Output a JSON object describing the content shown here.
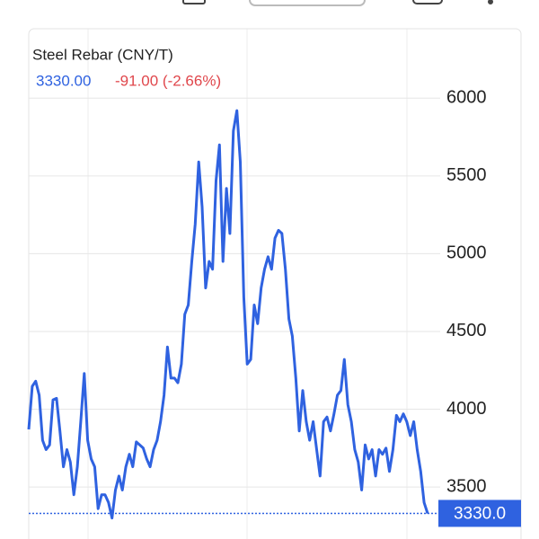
{
  "chart_data": {
    "type": "line",
    "title": "Steel Rebar (CNY/T)",
    "quote": {
      "last": "3330.00",
      "change": "-91.00 (-2.66%)"
    },
    "series": [
      {
        "name": "Steel Rebar",
        "color": "#2f62e0",
        "values": [
          3870,
          4147,
          4180,
          4090,
          3800,
          3740,
          3770,
          4060,
          4070,
          3860,
          3630,
          3740,
          3660,
          3450,
          3630,
          3920,
          4230,
          3800,
          3680,
          3630,
          3360,
          3450,
          3450,
          3400,
          3300,
          3480,
          3570,
          3480,
          3630,
          3710,
          3630,
          3790,
          3770,
          3750,
          3680,
          3630,
          3740,
          3800,
          3920,
          4090,
          4400,
          4200,
          4200,
          4170,
          4290,
          4610,
          4670,
          4950,
          5190,
          5590,
          5300,
          4780,
          4950,
          4900,
          5470,
          5700,
          4950,
          5420,
          5130,
          5790,
          5920,
          5590,
          4720,
          4290,
          4320,
          4670,
          4550,
          4780,
          4900,
          4980,
          4900,
          5100,
          5150,
          5130,
          4900,
          4580,
          4470,
          4200,
          3860,
          4120,
          3920,
          3800,
          3920,
          3740,
          3570,
          3920,
          3950,
          3860,
          3970,
          4090,
          4120,
          4320,
          4030,
          3920,
          3740,
          3660,
          3480,
          3770,
          3680,
          3740,
          3570,
          3740,
          3710,
          3750,
          3600,
          3740,
          3960,
          3920,
          3970,
          3920,
          3830,
          3920,
          3740,
          3600,
          3400,
          3330
        ]
      }
    ],
    "ylim": [
      3200,
      6400
    ],
    "yticks": [
      3500,
      4000,
      4500,
      5000,
      5500,
      6000
    ],
    "grid": true,
    "price_line": {
      "value": 3330,
      "label": "3330.0",
      "color": "#2f62e0"
    }
  }
}
